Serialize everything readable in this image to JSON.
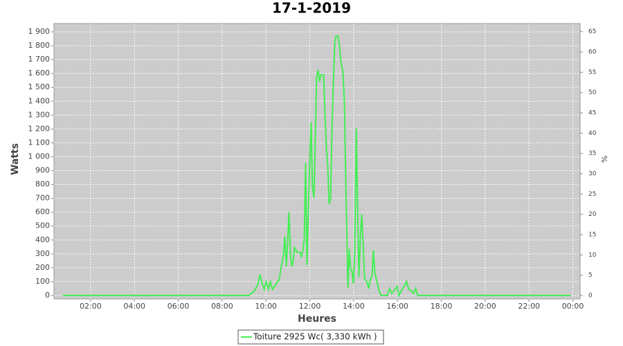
{
  "chart_data": {
    "type": "line",
    "title": "17-1-2019",
    "x_label": "Heures",
    "y_label": "Watts",
    "y2_label": "%",
    "xlim": [
      0.33,
      24.33
    ],
    "xticks": [
      {
        "value": 2,
        "label": "02:00"
      },
      {
        "value": 4,
        "label": "04:00"
      },
      {
        "value": 6,
        "label": "06:00"
      },
      {
        "value": 8,
        "label": "08:00"
      },
      {
        "value": 10,
        "label": "10:00"
      },
      {
        "value": 12,
        "label": "12:00"
      },
      {
        "value": 14,
        "label": "14:00"
      },
      {
        "value": 16,
        "label": "16:00"
      },
      {
        "value": 18,
        "label": "18:00"
      },
      {
        "value": 20,
        "label": "20:00"
      },
      {
        "value": 22,
        "label": "22:00"
      },
      {
        "value": 24,
        "label": "00:00"
      }
    ],
    "ylim": [
      -25,
      1960
    ],
    "yticks": [
      0,
      100,
      200,
      300,
      400,
      500,
      600,
      700,
      800,
      900,
      {
        "value": 1000,
        "label": "1 000"
      },
      {
        "value": 1100,
        "label": "1 100"
      },
      {
        "value": 1200,
        "label": "1 200"
      },
      {
        "value": 1300,
        "label": "1 300"
      },
      {
        "value": 1400,
        "label": "1 400"
      },
      {
        "value": 1500,
        "label": "1 500"
      },
      {
        "value": 1600,
        "label": "1 600"
      },
      {
        "value": 1700,
        "label": "1 700"
      },
      {
        "value": 1800,
        "label": "1 800"
      },
      {
        "value": 1900,
        "label": "1 900"
      }
    ],
    "y2lim": [
      -0.85,
      67.0
    ],
    "y2ticks": [
      0,
      5,
      10,
      15,
      20,
      25,
      30,
      35,
      40,
      45,
      50,
      55,
      60,
      65
    ],
    "grid": true,
    "legend": "bottom",
    "series": [
      {
        "name": "Toiture 2925 Wc( 3,330 kWh )",
        "color": "#44ee55",
        "x": [
          0.74,
          9.22,
          9.48,
          9.64,
          9.73,
          9.83,
          9.92,
          10.01,
          10.11,
          10.2,
          10.3,
          10.42,
          10.52,
          10.6,
          10.7,
          10.8,
          10.86,
          10.93,
          10.99,
          11.05,
          11.12,
          11.18,
          11.24,
          11.3,
          11.43,
          11.56,
          11.62,
          11.68,
          11.75,
          11.81,
          11.87,
          11.94,
          12.0,
          12.06,
          12.12,
          12.19,
          12.25,
          12.31,
          12.38,
          12.44,
          12.5,
          12.63,
          12.69,
          12.76,
          12.82,
          12.88,
          12.95,
          13.01,
          13.07,
          13.14,
          13.2,
          13.29,
          13.36,
          13.42,
          13.51,
          13.58,
          13.64,
          13.74,
          13.8,
          13.86,
          13.93,
          13.99,
          14.05,
          14.12,
          14.18,
          14.24,
          14.31,
          14.37,
          14.43,
          14.5,
          14.62,
          14.69,
          14.75,
          14.84,
          14.9,
          14.97,
          15.06,
          15.16,
          15.25,
          15.53,
          15.64,
          15.73,
          15.85,
          15.98,
          16.07,
          16.23,
          16.32,
          16.42,
          16.51,
          16.64,
          16.73,
          16.83,
          16.92,
          23.9
        ],
        "values": [
          0,
          0,
          35,
          85,
          150,
          85,
          45,
          100,
          45,
          100,
          45,
          70,
          100,
          110,
          210,
          295,
          425,
          210,
          400,
          600,
          285,
          210,
          245,
          345,
          310,
          310,
          275,
          320,
          410,
          955,
          220,
          635,
          985,
          1250,
          785,
          705,
          1130,
          1580,
          1625,
          1540,
          1590,
          1590,
          1320,
          1057,
          930,
          660,
          695,
          1180,
          1505,
          1830,
          1870,
          1870,
          1790,
          1680,
          1615,
          1380,
          835,
          55,
          335,
          195,
          170,
          85,
          310,
          1205,
          635,
          135,
          435,
          585,
          385,
          120,
          95,
          50,
          110,
          145,
          325,
          160,
          100,
          35,
          0,
          0,
          50,
          15,
          35,
          65,
          0,
          50,
          70,
          100,
          45,
          35,
          15,
          50,
          0,
          0
        ]
      }
    ]
  }
}
